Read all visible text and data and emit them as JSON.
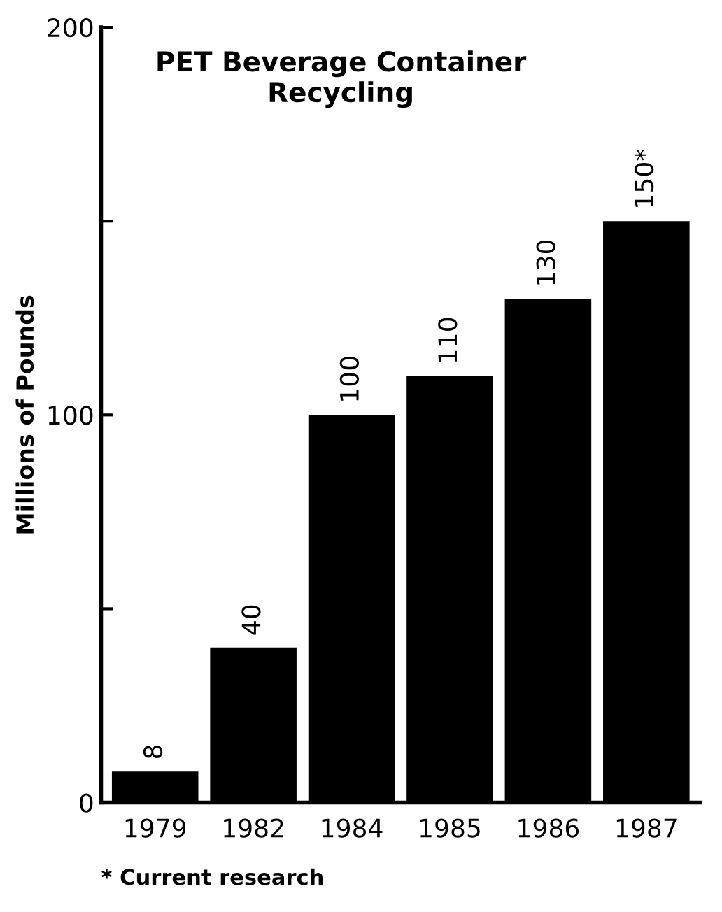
{
  "chart_data": {
    "type": "bar",
    "title": "PET Beverage Container\nRecycling",
    "ylabel": "Millions of Pounds",
    "categories": [
      "1979",
      "1982",
      "1984",
      "1985",
      "1986",
      "1987"
    ],
    "values": [
      8,
      40,
      100,
      110,
      130,
      150
    ],
    "color": "#000000",
    "value_labels": [
      "8",
      "40",
      "100",
      "110",
      "130",
      "150*"
    ],
    "ylim": [
      0,
      200
    ],
    "yticks": [
      0,
      {
        "value": 50,
        "label": null
      },
      100,
      {
        "value": 150,
        "label": null
      },
      200
    ],
    "grid": false,
    "annotations": [
      "* Current research"
    ]
  }
}
